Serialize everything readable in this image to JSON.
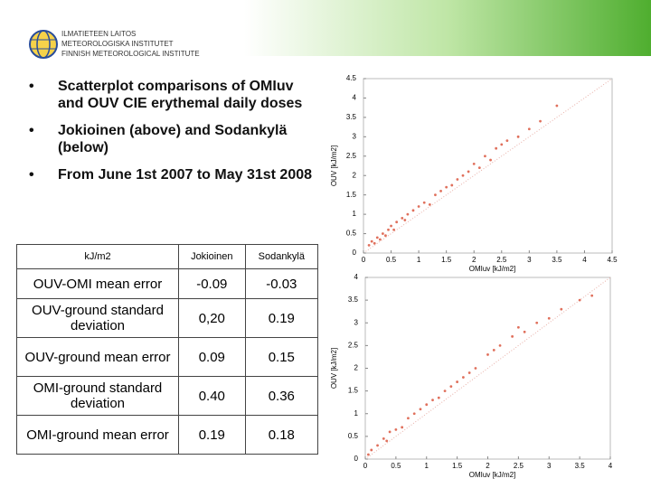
{
  "header": {
    "logo_lines": [
      "ILMATIETEEN LAITOS",
      "METEOROLOGISKA INSTITUTET",
      "FINNISH METEOROLOGICAL INSTITUTE"
    ]
  },
  "bullets": [
    "Scatterplot comparisons of OMIuv and OUV CIE erythemal daily doses",
    "Jokioinen (above) and Sodankylä (below)",
    "From June 1st 2007 to May 31st 2008"
  ],
  "table": {
    "header": [
      "kJ/m2",
      "Jokioinen",
      "Sodankylä"
    ],
    "rows": [
      [
        "OUV-OMI mean error",
        "-0.09",
        "-0.03"
      ],
      [
        "OUV-ground standard deviation",
        "0,20",
        "0.19"
      ],
      [
        "OUV-ground mean error",
        "0.09",
        "0.15"
      ],
      [
        "OMI-ground standard deviation",
        "0.40",
        "0.36"
      ],
      [
        "OMI-ground mean error",
        "0.19",
        "0.18"
      ]
    ]
  },
  "chart_data": [
    {
      "type": "scatter",
      "x_label": "OMIuv [kJ/m2]",
      "y_label": "OUV [kJ/m2]",
      "color": "#e0705c",
      "xlim": [
        0,
        4.5
      ],
      "ylim": [
        0,
        4.5
      ],
      "xticks": [
        0,
        0.5,
        1,
        1.5,
        2,
        2.5,
        3,
        3.5,
        4,
        4.5
      ],
      "yticks": [
        0,
        0.5,
        1,
        1.5,
        2,
        2.5,
        3,
        3.5,
        4,
        4.5
      ],
      "x": [
        0.1,
        0.15,
        0.2,
        0.25,
        0.3,
        0.35,
        0.4,
        0.45,
        0.5,
        0.55,
        0.6,
        0.7,
        0.75,
        0.8,
        0.9,
        1.0,
        1.1,
        1.2,
        1.3,
        1.4,
        1.5,
        1.6,
        1.7,
        1.8,
        1.9,
        2.0,
        2.1,
        2.2,
        2.3,
        2.4,
        2.5,
        2.6,
        2.8,
        3.0,
        3.2,
        3.5
      ],
      "values": [
        0.2,
        0.3,
        0.25,
        0.4,
        0.35,
        0.5,
        0.45,
        0.6,
        0.7,
        0.6,
        0.8,
        0.9,
        0.85,
        1.0,
        1.1,
        1.2,
        1.3,
        1.25,
        1.5,
        1.6,
        1.7,
        1.75,
        1.9,
        2.0,
        2.1,
        2.3,
        2.2,
        2.5,
        2.4,
        2.7,
        2.8,
        2.9,
        3.0,
        3.2,
        3.4,
        3.8
      ]
    },
    {
      "type": "scatter",
      "x_label": "OMIuv [kJ/m2]",
      "y_label": "OUV [kJ/m2]",
      "color": "#e0705c",
      "xlim": [
        0,
        4
      ],
      "ylim": [
        0,
        4
      ],
      "xticks": [
        0,
        0.5,
        1,
        1.5,
        2,
        2.5,
        3,
        3.5,
        4
      ],
      "yticks": [
        0,
        0.5,
        1,
        1.5,
        2,
        2.5,
        3,
        3.5,
        4
      ],
      "x": [
        0.05,
        0.1,
        0.2,
        0.3,
        0.35,
        0.4,
        0.5,
        0.6,
        0.7,
        0.8,
        0.9,
        1.0,
        1.1,
        1.2,
        1.3,
        1.4,
        1.5,
        1.6,
        1.7,
        1.8,
        2.0,
        2.1,
        2.2,
        2.4,
        2.5,
        2.6,
        2.8,
        3.0,
        3.2,
        3.5,
        3.7
      ],
      "values": [
        0.1,
        0.2,
        0.3,
        0.45,
        0.4,
        0.6,
        0.65,
        0.7,
        0.9,
        1.0,
        1.1,
        1.2,
        1.3,
        1.35,
        1.5,
        1.6,
        1.7,
        1.8,
        1.9,
        2.0,
        2.3,
        2.4,
        2.5,
        2.7,
        2.9,
        2.8,
        3.0,
        3.1,
        3.3,
        3.5,
        3.6
      ]
    }
  ]
}
